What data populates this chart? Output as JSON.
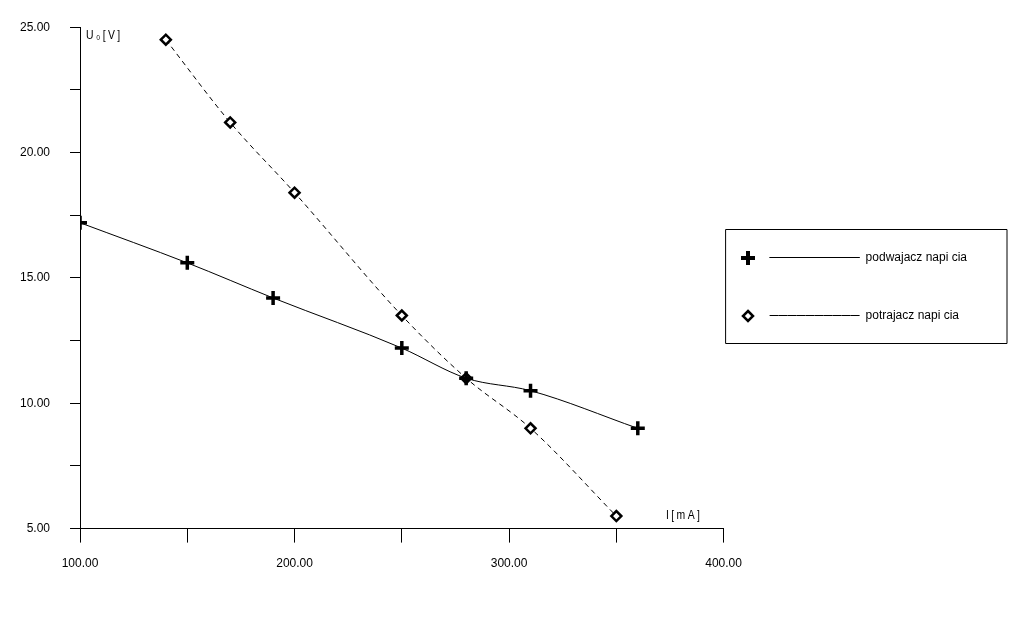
{
  "chart_data": {
    "type": "line",
    "xlabel": "I[mA]",
    "ylabel": "U₀[V]",
    "xlim": [
      100,
      400
    ],
    "ylim": [
      5,
      25
    ],
    "xticks": [
      {
        "value": 100,
        "label": "100.00"
      },
      {
        "value": 150,
        "label": null
      },
      {
        "value": 200,
        "label": "200.00"
      },
      {
        "value": 250,
        "label": null
      },
      {
        "value": 300,
        "label": "300.00"
      },
      {
        "value": 350,
        "label": null
      },
      {
        "value": 400,
        "label": "400.00"
      }
    ],
    "yticks": [
      {
        "value": 5,
        "label": "5.00"
      },
      {
        "value": 7.5,
        "label": null
      },
      {
        "value": 10,
        "label": "10.00"
      },
      {
        "value": 12.5,
        "label": null
      },
      {
        "value": 15,
        "label": "15.00"
      },
      {
        "value": 17.5,
        "label": null
      },
      {
        "value": 20,
        "label": "20.00"
      },
      {
        "value": 22.5,
        "label": null
      },
      {
        "value": 25,
        "label": "25.00"
      }
    ],
    "grid": false,
    "legend": "right",
    "series": [
      {
        "name": "podwajacz napi cia",
        "color": "#000000",
        "marker": "cross",
        "line_style": "solid",
        "x": [
          100,
          150,
          190,
          250,
          280,
          310,
          360
        ],
        "values": [
          17.2,
          15.6,
          14.2,
          12.2,
          11.0,
          10.5,
          9.0
        ]
      },
      {
        "name": "potrajacz napi cia",
        "color": "#000000",
        "marker": "diamond",
        "line_style": "dashed",
        "x": [
          140,
          170,
          200,
          250,
          280,
          310,
          350
        ],
        "values": [
          24.5,
          21.2,
          18.4,
          13.5,
          11.0,
          9.0,
          5.5
        ]
      }
    ]
  }
}
